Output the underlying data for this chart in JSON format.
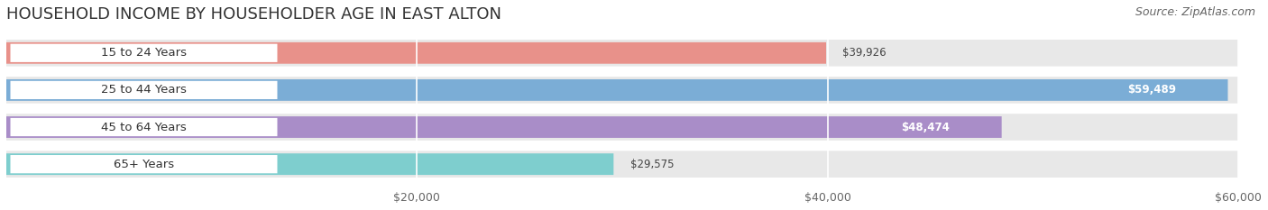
{
  "title": "HOUSEHOLD INCOME BY HOUSEHOLDER AGE IN EAST ALTON",
  "source": "Source: ZipAtlas.com",
  "categories": [
    "15 to 24 Years",
    "25 to 44 Years",
    "45 to 64 Years",
    "65+ Years"
  ],
  "values": [
    39926,
    59489,
    48474,
    29575
  ],
  "bar_colors": [
    "#E8918A",
    "#7BADD6",
    "#A98DC8",
    "#7ECECE"
  ],
  "bg_track_color": "#E8E8E8",
  "max_value": 60000,
  "x_ticks": [
    20000,
    40000,
    60000
  ],
  "x_tick_labels": [
    "$20,000",
    "$40,000",
    "$60,000"
  ],
  "value_inside": [
    false,
    true,
    true,
    false
  ],
  "title_fontsize": 13,
  "source_fontsize": 9,
  "tick_fontsize": 9,
  "label_fontsize": 9.5,
  "value_fontsize": 8.5,
  "bg_color": "#FFFFFF"
}
